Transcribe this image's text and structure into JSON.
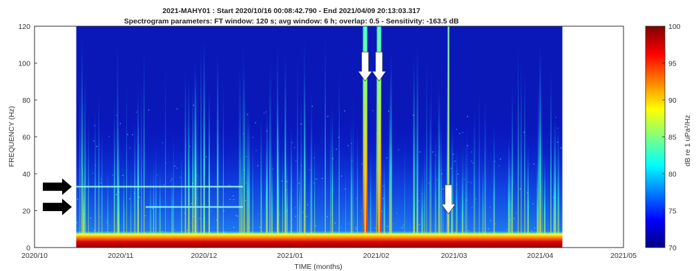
{
  "chart_data": {
    "type": "heatmap",
    "title": "2021-MAHY01 : Start 2020/10/16 00:08:42.790 - End 2021/04/09 20:13:03.317",
    "subtitle": "Spectrogram parameters: FT window: 120 s; avg window: 6 h; overlap: 0.5 - Sensitivity: -163.5 dB",
    "xlabel": "TIME (months)",
    "ylabel": "FREQUENCY (Hz)",
    "x_ticks": [
      "2020/10",
      "2020/11",
      "2020/12",
      "2021/01",
      "2021/02",
      "2021/03",
      "2021/04",
      "2021/05"
    ],
    "x_range": [
      "2020/10/01",
      "2021/05/01"
    ],
    "data_range": [
      "2020/10/16",
      "2021/04/09"
    ],
    "y_ticks": [
      0,
      20,
      40,
      60,
      80,
      100,
      120
    ],
    "ylim": [
      0,
      120
    ],
    "colorbar": {
      "label": "dB re 1 uPa²/Hz",
      "range": [
        70,
        100
      ],
      "ticks": [
        70,
        75,
        80,
        85,
        90,
        95,
        100
      ],
      "colormap": "jet"
    },
    "features": {
      "tonal_bands_hz": [
        33,
        22
      ],
      "tonal_bands_dates": [
        [
          "2020/10/16",
          "2020/12/15"
        ],
        [
          "2020/11/10",
          "2020/12/15"
        ]
      ],
      "broadband_events": [
        "2021/01/28",
        "2021/02/02",
        "2021/02/27"
      ],
      "low_frequency_floor_hz": [
        0,
        5
      ]
    },
    "annotations": [
      {
        "type": "arrow-right",
        "color": "#000000",
        "frequency_hz": 33
      },
      {
        "type": "arrow-right",
        "color": "#000000",
        "frequency_hz": 22
      },
      {
        "type": "arrow-down",
        "color": "#ffffff",
        "date": "2021/01/28"
      },
      {
        "type": "arrow-down",
        "color": "#ffffff",
        "date": "2021/02/02"
      },
      {
        "type": "arrow-down",
        "color": "#ffffff",
        "date": "2021/02/27"
      }
    ]
  }
}
